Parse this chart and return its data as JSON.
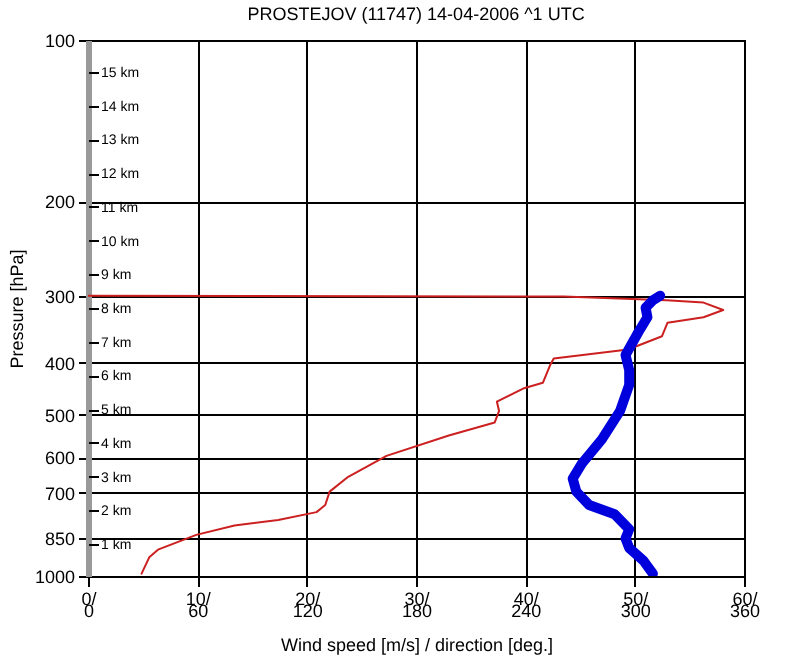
{
  "chart_data": {
    "type": "line",
    "title": "PROSTEJOV (11747)  14-04-2006  ^1  UTC",
    "xlabel": "Wind speed [m/s] / direction [deg.]",
    "ylabel": "Pressure [hPa]",
    "orientation": "horizontal",
    "log": "y",
    "grid": true,
    "line_style": "solid",
    "xlim": [
      0,
      60
    ],
    "xticks": [
      {
        "value": 0,
        "label": "0/"
      },
      {
        "value": 10,
        "label": "10/"
      },
      {
        "value": 20,
        "label": "20/"
      },
      {
        "value": 30,
        "label": "30/"
      },
      {
        "value": 40,
        "label": "40/"
      },
      {
        "value": 50,
        "label": "50/"
      },
      {
        "value": 60,
        "label": "60/"
      }
    ],
    "x2lim": [
      0,
      360
    ],
    "x2ticks": [
      0,
      60,
      120,
      180,
      240,
      300,
      360
    ],
    "ylim": [
      1000,
      100
    ],
    "yticks": [
      100,
      200,
      300,
      400,
      500,
      600,
      700,
      850,
      1000
    ],
    "y2lim": [
      0.05,
      15.95
    ],
    "y2ticks": [
      {
        "value": 15,
        "label": "15 km"
      },
      {
        "value": 14,
        "label": "14 km"
      },
      {
        "value": 13,
        "label": "13 km"
      },
      {
        "value": 12,
        "label": "12 km"
      },
      {
        "value": 11,
        "label": "11 km"
      },
      {
        "value": 10,
        "label": "10 km"
      },
      {
        "value": 9,
        "label": "9 km"
      },
      {
        "value": 8,
        "label": "8 km"
      },
      {
        "value": 7,
        "label": "7 km"
      },
      {
        "value": 6,
        "label": "6 km"
      },
      {
        "value": 5,
        "label": "5 km"
      },
      {
        "value": 4,
        "label": "4 km"
      },
      {
        "value": 3,
        "label": "3 km"
      },
      {
        "value": 2,
        "label": "2 km"
      },
      {
        "value": 1,
        "label": "1 km"
      }
    ],
    "series": [
      {
        "color": "#cc2020",
        "x": [
          990,
          923,
          893,
          838,
          805,
          786,
          760,
          737,
          696,
          653,
          597,
          547,
          517,
          492,
          473,
          447,
          436,
          403,
          393,
          378,
          357,
          337,
          329,
          319,
          309,
          306,
          301,
          300
        ],
        "values": [
          4.9,
          5.6,
          6.4,
          9.9,
          13.4,
          17.4,
          20.9,
          21.7,
          22.1,
          23.8,
          27.3,
          33.0,
          37.2,
          37.6,
          37.4,
          39.8,
          41.6,
          42.3,
          42.6,
          49.4,
          52.5,
          53.0,
          56.3,
          58.1,
          56.3,
          52.9,
          43.5,
          0
        ]
      },
      {
        "color": "#0000dd",
        "axis": "x2",
        "x": [
          990,
          938,
          887,
          851,
          818,
          767,
          737,
          696,
          658,
          617,
          556,
          492,
          440,
          413,
          387,
          351,
          329,
          316,
          306,
          300
        ],
        "values": [
          310,
          305,
          297,
          295,
          297,
          289,
          275,
          268,
          266,
          271,
          282,
          292,
          297,
          297,
          295,
          302,
          307,
          306,
          310,
          314
        ]
      }
    ]
  }
}
